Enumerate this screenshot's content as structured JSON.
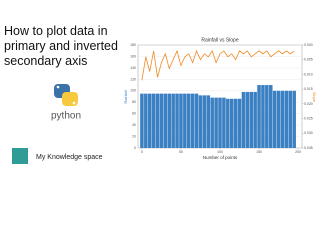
{
  "heading": "How to plot data in primary and inverted secondary axis",
  "logo_text": "python",
  "brand": "My Knowledge space",
  "chart_data": {
    "type": "bar-line",
    "title": "Rainfall vs Slope",
    "x_label": "Number of points",
    "y_label": "Rainfall",
    "y2_label": "Slope",
    "x": [
      0,
      5,
      10,
      15,
      20,
      25,
      30,
      35,
      40,
      45,
      50,
      55,
      60,
      65,
      70,
      75,
      80,
      85,
      90,
      95,
      100,
      105,
      110,
      115,
      120,
      125,
      130,
      135,
      140,
      145,
      150,
      155,
      160,
      165,
      170,
      175,
      180,
      185,
      190,
      195
    ],
    "series": [
      {
        "name": "Rainfall",
        "type": "bar",
        "color": "#3b80c2",
        "values": [
          95,
          95,
          95,
          95,
          95,
          95,
          95,
          95,
          95,
          95,
          95,
          95,
          95,
          95,
          95,
          92,
          92,
          92,
          88,
          88,
          88,
          88,
          86,
          86,
          86,
          86,
          98,
          98,
          98,
          98,
          110,
          110,
          110,
          110,
          100,
          100,
          100,
          100,
          100,
          100
        ]
      },
      {
        "name": "Slope",
        "type": "line",
        "axis": "y2",
        "color": "#f08a24",
        "values": [
          0.012,
          0.004,
          0.009,
          0.002,
          0.011,
          0.006,
          0.003,
          0.008,
          0.005,
          0.002,
          0.007,
          0.004,
          0.003,
          0.006,
          0.002,
          0.005,
          0.003,
          0.004,
          0.002,
          0.006,
          0.003,
          0.002,
          0.004,
          0.003,
          0.005,
          0.002,
          0.003,
          0.002,
          0.004,
          0.003,
          0.002,
          0.003,
          0.002,
          0.004,
          0.003,
          0.002,
          0.003,
          0.002,
          0.003,
          0.002
        ]
      }
    ],
    "xlim": [
      -5,
      205
    ],
    "xticks": [
      0,
      50,
      100,
      150,
      200
    ],
    "ylim": [
      0,
      180
    ],
    "yticks": [
      0,
      20,
      40,
      60,
      80,
      100,
      120,
      140,
      160,
      180
    ],
    "y2lim": [
      0,
      0.035
    ],
    "y2_inverted": true,
    "y2ticks": [
      {
        "value": 0,
        "label": "0.000"
      },
      {
        "value": 0.005,
        "label": "0.005"
      },
      {
        "value": 0.01,
        "label": "0.010"
      },
      {
        "value": 0.015,
        "label": "0.015"
      },
      {
        "value": 0.02,
        "label": "0.020"
      },
      {
        "value": 0.025,
        "label": "0.025"
      },
      {
        "value": 0.03,
        "label": "0.030"
      },
      {
        "value": 0.035,
        "label": "0.035"
      }
    ]
  }
}
